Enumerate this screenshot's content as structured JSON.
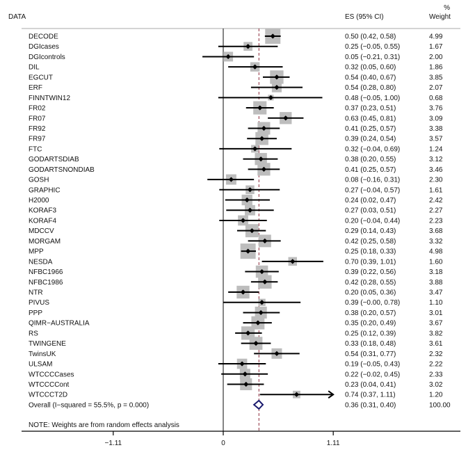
{
  "chart_data": {
    "type": "forest",
    "headers": {
      "study": "DATA",
      "es": "ES (95% CI)",
      "weight_top": "%",
      "weight": "Weight"
    },
    "x_ticks": [
      -1.11,
      0,
      1.11
    ],
    "x_tick_labels": [
      "−1.11",
      "0",
      "1.11"
    ],
    "xlim": [
      -1.11,
      1.11
    ],
    "null_line": 0,
    "overall_line": 0.36,
    "studies": [
      {
        "name": "DECODE",
        "es": 0.5,
        "lo": 0.42,
        "hi": 0.58,
        "ci_text": "0.50 (0.42, 0.58)",
        "weight": "4.99"
      },
      {
        "name": "DGIcases",
        "es": 0.25,
        "lo": -0.05,
        "hi": 0.55,
        "ci_text": "0.25 (−0.05, 0.55)",
        "weight": "1.67"
      },
      {
        "name": "DGIcontrols",
        "es": 0.05,
        "lo": -0.21,
        "hi": 0.31,
        "ci_text": "0.05 (−0.21, 0.31)",
        "weight": "2.00"
      },
      {
        "name": "DIL",
        "es": 0.32,
        "lo": 0.05,
        "hi": 0.6,
        "ci_text": "0.32 (0.05, 0.60)",
        "weight": "1.86"
      },
      {
        "name": "EGCUT",
        "es": 0.54,
        "lo": 0.4,
        "hi": 0.67,
        "ci_text": "0.54 (0.40, 0.67)",
        "weight": "3.85"
      },
      {
        "name": "ERF",
        "es": 0.54,
        "lo": 0.28,
        "hi": 0.8,
        "ci_text": "0.54 (0.28, 0.80)",
        "weight": "2.07"
      },
      {
        "name": "FINNTWIN12",
        "es": 0.48,
        "lo": -0.05,
        "hi": 1.0,
        "ci_text": "0.48 (−0.05, 1.00)",
        "weight": "0.68"
      },
      {
        "name": "FR02",
        "es": 0.37,
        "lo": 0.23,
        "hi": 0.51,
        "ci_text": "0.37 (0.23, 0.51)",
        "weight": "3.76"
      },
      {
        "name": "FR07",
        "es": 0.63,
        "lo": 0.45,
        "hi": 0.81,
        "ci_text": "0.63 (0.45, 0.81)",
        "weight": "3.09"
      },
      {
        "name": "FR92",
        "es": 0.41,
        "lo": 0.25,
        "hi": 0.57,
        "ci_text": "0.41 (0.25, 0.57)",
        "weight": "3.38"
      },
      {
        "name": "FR97",
        "es": 0.39,
        "lo": 0.24,
        "hi": 0.54,
        "ci_text": "0.39 (0.24, 0.54)",
        "weight": "3.57"
      },
      {
        "name": "FTC",
        "es": 0.32,
        "lo": -0.04,
        "hi": 0.69,
        "ci_text": "0.32 (−0.04, 0.69)",
        "weight": "1.24"
      },
      {
        "name": "GODARTSDIAB",
        "es": 0.38,
        "lo": 0.2,
        "hi": 0.55,
        "ci_text": "0.38 (0.20, 0.55)",
        "weight": "3.12"
      },
      {
        "name": "GODARTSNONDIAB",
        "es": 0.41,
        "lo": 0.25,
        "hi": 0.57,
        "ci_text": "0.41 (0.25, 0.57)",
        "weight": "3.46"
      },
      {
        "name": "GOSH",
        "es": 0.08,
        "lo": -0.16,
        "hi": 0.31,
        "ci_text": "0.08 (−0.16, 0.31)",
        "weight": "2.30"
      },
      {
        "name": "GRAPHIC",
        "es": 0.27,
        "lo": -0.04,
        "hi": 0.57,
        "ci_text": "0.27 (−0.04, 0.57)",
        "weight": "1.61"
      },
      {
        "name": "H2000",
        "es": 0.24,
        "lo": 0.02,
        "hi": 0.47,
        "ci_text": "0.24 (0.02, 0.47)",
        "weight": "2.42"
      },
      {
        "name": "KORAF3",
        "es": 0.27,
        "lo": 0.03,
        "hi": 0.51,
        "ci_text": "0.27 (0.03, 0.51)",
        "weight": "2.27"
      },
      {
        "name": "KORAF4",
        "es": 0.2,
        "lo": -0.04,
        "hi": 0.44,
        "ci_text": "0.20 (−0.04, 0.44)",
        "weight": "2.23"
      },
      {
        "name": "MDCCV",
        "es": 0.29,
        "lo": 0.14,
        "hi": 0.43,
        "ci_text": "0.29 (0.14, 0.43)",
        "weight": "3.68"
      },
      {
        "name": "MORGAM",
        "es": 0.42,
        "lo": 0.25,
        "hi": 0.58,
        "ci_text": "0.42 (0.25, 0.58)",
        "weight": "3.32"
      },
      {
        "name": "MPP",
        "es": 0.25,
        "lo": 0.18,
        "hi": 0.33,
        "ci_text": "0.25 (0.18, 0.33)",
        "weight": "4.98"
      },
      {
        "name": "NESDA",
        "es": 0.7,
        "lo": 0.39,
        "hi": 1.01,
        "ci_text": "0.70 (0.39, 1.01)",
        "weight": "1.60"
      },
      {
        "name": "NFBC1966",
        "es": 0.39,
        "lo": 0.22,
        "hi": 0.56,
        "ci_text": "0.39 (0.22, 0.56)",
        "weight": "3.18"
      },
      {
        "name": "NFBC1986",
        "es": 0.42,
        "lo": 0.28,
        "hi": 0.55,
        "ci_text": "0.42 (0.28, 0.55)",
        "weight": "3.88"
      },
      {
        "name": "NTR",
        "es": 0.2,
        "lo": 0.05,
        "hi": 0.36,
        "ci_text": "0.20 (0.05, 0.36)",
        "weight": "3.47"
      },
      {
        "name": "PIVUS",
        "es": 0.39,
        "lo": -0.0,
        "hi": 0.78,
        "ci_text": "0.39 (−0.00, 0.78)",
        "weight": "1.10"
      },
      {
        "name": "PPP",
        "es": 0.38,
        "lo": 0.2,
        "hi": 0.57,
        "ci_text": "0.38 (0.20, 0.57)",
        "weight": "3.01"
      },
      {
        "name": "QIMR−AUSTRALIA",
        "es": 0.35,
        "lo": 0.2,
        "hi": 0.49,
        "ci_text": "0.35 (0.20, 0.49)",
        "weight": "3.67"
      },
      {
        "name": "RS",
        "es": 0.25,
        "lo": 0.12,
        "hi": 0.39,
        "ci_text": "0.25 (0.12, 0.39)",
        "weight": "3.82"
      },
      {
        "name": "TWINGENE",
        "es": 0.33,
        "lo": 0.18,
        "hi": 0.48,
        "ci_text": "0.33 (0.18, 0.48)",
        "weight": "3.61"
      },
      {
        "name": "TwinsUK",
        "es": 0.54,
        "lo": 0.31,
        "hi": 0.77,
        "ci_text": "0.54 (0.31, 0.77)",
        "weight": "2.32"
      },
      {
        "name": "ULSAM",
        "es": 0.19,
        "lo": -0.05,
        "hi": 0.43,
        "ci_text": "0.19 (−0.05, 0.43)",
        "weight": "2.22"
      },
      {
        "name": "WTCCCCases",
        "es": 0.22,
        "lo": -0.02,
        "hi": 0.45,
        "ci_text": "0.22 (−0.02, 0.45)",
        "weight": "2.33"
      },
      {
        "name": "WTCCCCont",
        "es": 0.23,
        "lo": 0.04,
        "hi": 0.41,
        "ci_text": "0.23 (0.04, 0.41)",
        "weight": "3.02"
      },
      {
        "name": "WTCCCT2D",
        "es": 0.74,
        "lo": 0.37,
        "hi": 1.11,
        "ci_text": "0.74 (0.37, 1.11)",
        "weight": "1.20",
        "arrow_right": true
      }
    ],
    "overall": {
      "label": "Overall  (I−squared = 55.5%, p = 0.000)",
      "es": 0.36,
      "lo": 0.31,
      "hi": 0.4,
      "ci_text": "0.36 (0.31, 0.40)",
      "weight": "100.00"
    },
    "note": "NOTE: Weights are from random effects analysis",
    "colors": {
      "box": "#bdbdbd",
      "line": "#000000",
      "overall_diamond": "#1a1a6e",
      "overall_line": "#8b2a3a",
      "rule": "#999999"
    }
  }
}
